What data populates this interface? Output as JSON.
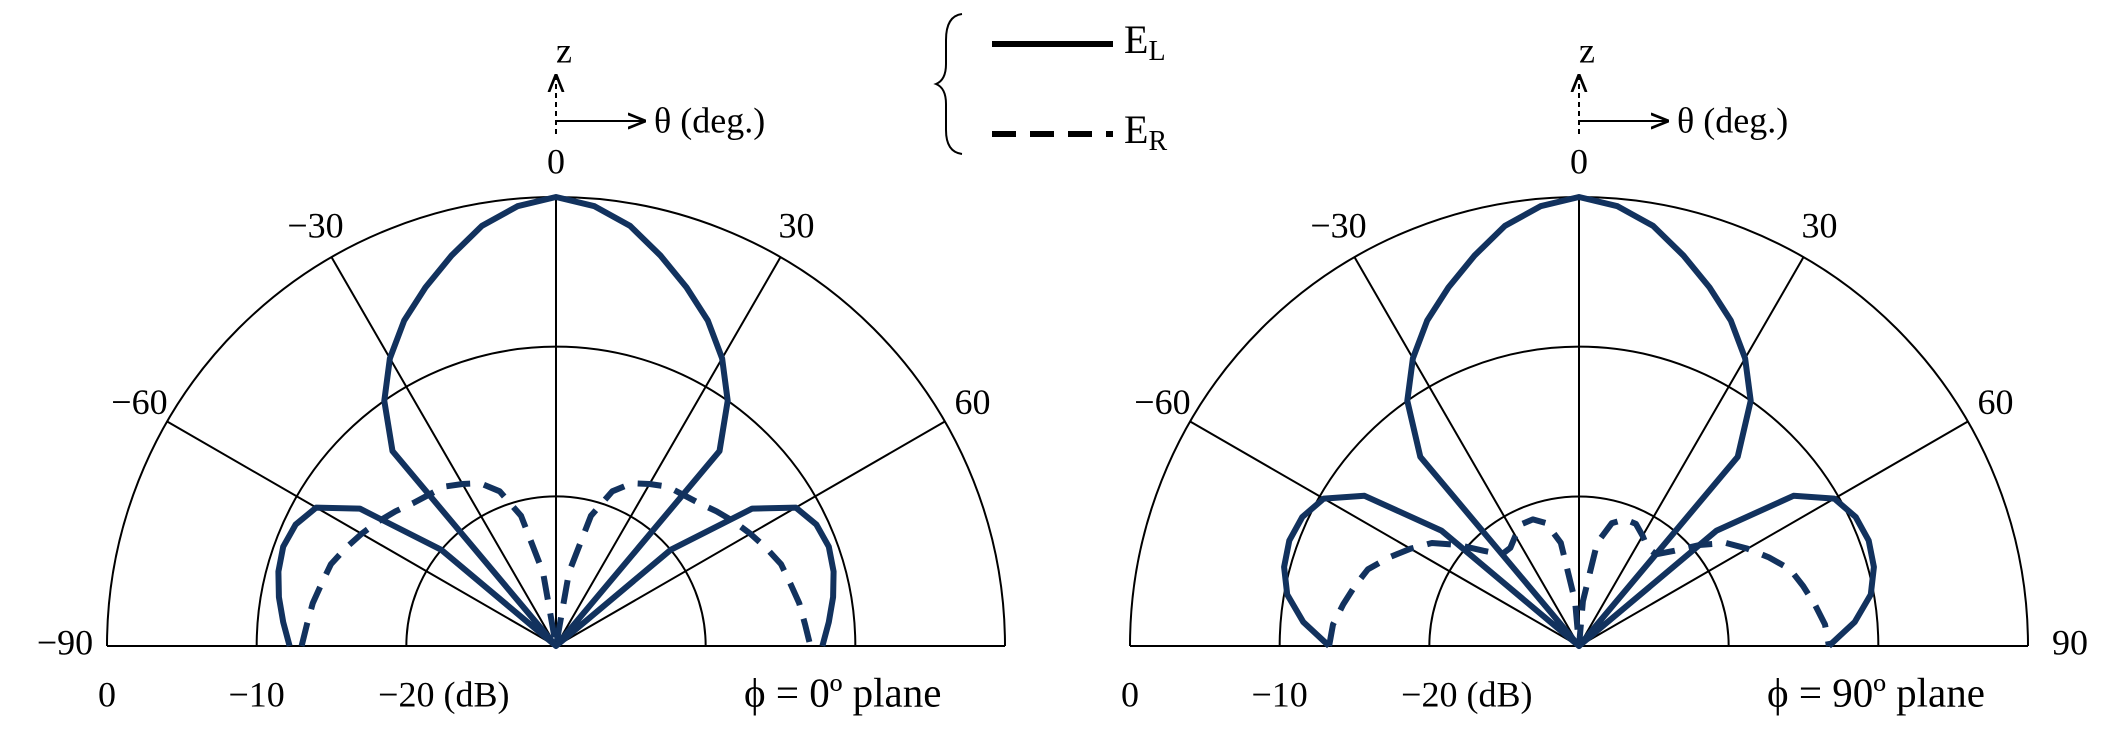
{
  "chart_data": [
    {
      "type": "polar",
      "title": "ϕ = 0º plane",
      "annotations": [
        "z",
        "θ (deg.)"
      ],
      "theta": [
        -90,
        -85,
        -80,
        -75,
        -70,
        -65,
        -60,
        -55,
        -50,
        -45,
        -40,
        -35,
        -30,
        -25,
        -20,
        -15,
        -10,
        -5,
        0,
        5,
        10,
        15,
        20,
        25,
        30,
        35,
        40,
        45,
        50,
        55,
        60,
        65,
        70,
        75,
        80,
        85,
        90
      ],
      "rlim": [
        -30,
        0
      ],
      "rticks": [
        0,
        {
          "value": -10,
          "label": "−10"
        },
        {
          "value": -20,
          "label": "−20 (dB)"
        }
      ],
      "thetaticks": [
        {
          "value": -90,
          "label": "−90"
        },
        {
          "value": -60,
          "label": "−60"
        },
        {
          "value": -30,
          "label": "−30"
        },
        0,
        30,
        60
      ],
      "series": [
        {
          "name": "EL",
          "color": "#12325e",
          "style": "solid",
          "values": [
            -12.2,
            -11.7,
            -11.2,
            -10.8,
            -10.6,
            -10.8,
            -11.5,
            -14,
            -20,
            -30,
            -13,
            -10,
            -7.8,
            -6,
            -4.5,
            -3,
            -1.5,
            -0.5,
            0,
            -0.5,
            -1.5,
            -3,
            -4.5,
            -6,
            -7.8,
            -10,
            -13,
            -30,
            -20,
            -14,
            -11.5,
            -10.8,
            -10.6,
            -10.8,
            -11.2,
            -11.7,
            -12.2
          ]
        },
        {
          "name": "ER",
          "color": "#12325e",
          "style": "dashed",
          "values": [
            -13,
            -13.3,
            -13.5,
            -13.8,
            -14,
            -14.5,
            -15,
            -15.5,
            -16,
            -16.5,
            -16.8,
            -17,
            -17.5,
            -18,
            -19,
            -21,
            -25,
            -30,
            -30,
            -30,
            -25,
            -21,
            -19,
            -18,
            -17.5,
            -17,
            -16.8,
            -16.5,
            -16,
            -15.5,
            -15,
            -14.5,
            -14,
            -13.8,
            -13.5,
            -13.3,
            -13
          ]
        }
      ]
    },
    {
      "type": "polar",
      "title": "ϕ = 90º plane",
      "annotations": [
        "z",
        "θ (deg.)"
      ],
      "theta": [
        -90,
        -85,
        -80,
        -75,
        -70,
        -65,
        -60,
        -55,
        -50,
        -45,
        -40,
        -35,
        -30,
        -25,
        -20,
        -15,
        -10,
        -5,
        0,
        5,
        10,
        15,
        20,
        25,
        30,
        35,
        40,
        45,
        50,
        55,
        60,
        65,
        70,
        75,
        80,
        85,
        90
      ],
      "rlim": [
        -30,
        0
      ],
      "rticks": [
        0,
        {
          "value": -10,
          "label": "−10"
        },
        {
          "value": -20,
          "label": "−20 (dB)"
        }
      ],
      "thetaticks": [
        {
          "value": -60,
          "label": "−60"
        },
        {
          "value": -30,
          "label": "−30"
        },
        0,
        30,
        60,
        90
      ],
      "series": [
        {
          "color": "#12325e",
          "style": "solid",
          "values": [
            -13.3,
            -11.5,
            -10.2,
            -9.6,
            -9.4,
            -9.6,
            -10.3,
            -12.5,
            -18,
            -30,
            -13.5,
            -10,
            -7.8,
            -6,
            -4.5,
            -3,
            -1.5,
            -0.5,
            0,
            -0.5,
            -1.5,
            -3,
            -4.5,
            -6,
            -7.8,
            -10,
            -13.5,
            -30,
            -18,
            -12.5,
            -10.3,
            -9.6,
            -9.4,
            -9.6,
            -10.2,
            -11.5,
            -13.3
          ]
        },
        {
          "color": "#12325e",
          "style": "dashed",
          "values": [
            -13.3,
            -13.5,
            -14,
            -14.5,
            -15,
            -16,
            -17,
            -18,
            -19.5,
            -21,
            -22,
            -22,
            -21.5,
            -21,
            -21,
            -21.5,
            -23,
            -27,
            -30,
            -27,
            -23,
            -21.5,
            -21,
            -21,
            -21.5,
            -22,
            -22,
            -21,
            -19.5,
            -18,
            -17,
            -16,
            -15,
            -14.5,
            -14,
            -13.5,
            -13.3
          ]
        }
      ]
    }
  ]
}
